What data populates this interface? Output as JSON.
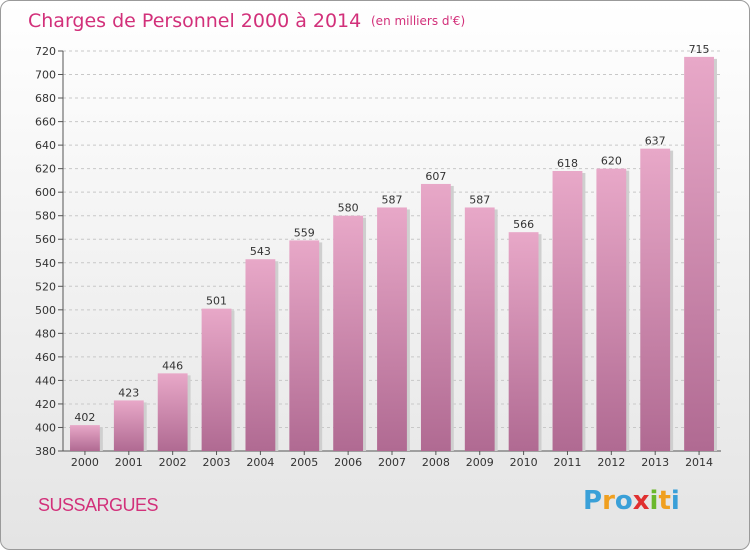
{
  "chart_data": {
    "type": "bar",
    "title": "Charges de Personnel 2000 à 2014",
    "subtitle": "(en milliers d'€)",
    "categories": [
      "2000",
      "2001",
      "2002",
      "2003",
      "2004",
      "2005",
      "2006",
      "2007",
      "2008",
      "2009",
      "2010",
      "2011",
      "2012",
      "2013",
      "2014"
    ],
    "values": [
      402,
      423,
      446,
      501,
      543,
      559,
      580,
      587,
      607,
      587,
      566,
      618,
      620,
      637,
      715
    ],
    "ylim": [
      380,
      720
    ],
    "yticks": [
      380,
      400,
      420,
      440,
      460,
      480,
      500,
      520,
      540,
      560,
      580,
      600,
      620,
      640,
      660,
      680,
      700,
      720
    ],
    "grid": true,
    "bar_color_top": "#e8a8c8",
    "bar_color_bottom": "#b06a92"
  },
  "place_name": "SUSSARGUES",
  "brand": {
    "letters": [
      "P",
      "r",
      "o",
      "x",
      "i",
      "t",
      "i"
    ],
    "colors": [
      "#3aa0d8",
      "#f0a020",
      "#3aa0d8",
      "#e03030",
      "#6cb82c",
      "#f0a020",
      "#3aa0d8"
    ]
  }
}
